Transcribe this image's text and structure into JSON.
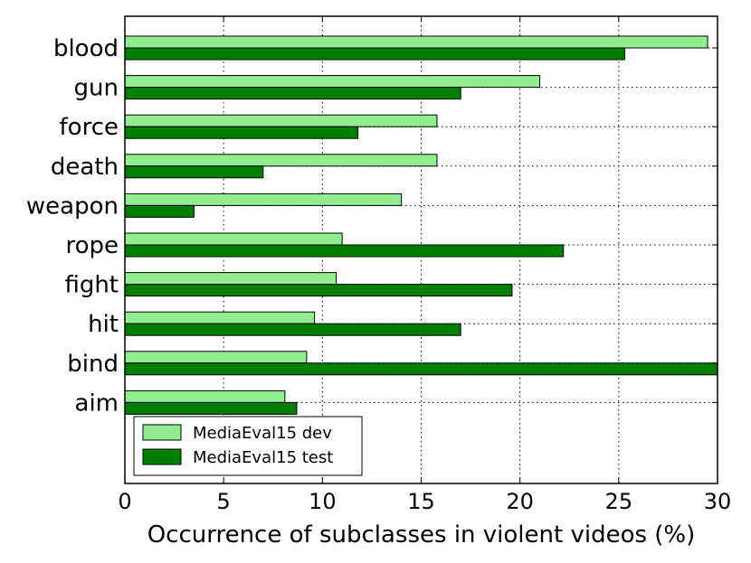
{
  "chart_data": {
    "type": "bar",
    "orientation": "horizontal",
    "categories": [
      "blood",
      "gun",
      "force",
      "death",
      "weapon",
      "rope",
      "fight",
      "hit",
      "bind",
      "aim"
    ],
    "series": [
      {
        "name": "MediaEval15 dev",
        "color": "#90ee90",
        "values": [
          29.5,
          21.0,
          15.8,
          15.8,
          14.0,
          11.0,
          10.7,
          9.6,
          9.2,
          8.1
        ]
      },
      {
        "name": "MediaEval15 test",
        "color": "#008000",
        "values": [
          25.3,
          17.0,
          11.8,
          7.0,
          3.5,
          22.2,
          19.6,
          17.0,
          30.0,
          8.7
        ]
      }
    ],
    "xlabel": "Occurrence of subclasses in violent videos (%)",
    "ylabel": "",
    "xlim": [
      0,
      30
    ],
    "xticks": [
      "0",
      "5",
      "10",
      "15",
      "20",
      "25",
      "30"
    ],
    "grid": true,
    "legend_position": "lower-left"
  }
}
